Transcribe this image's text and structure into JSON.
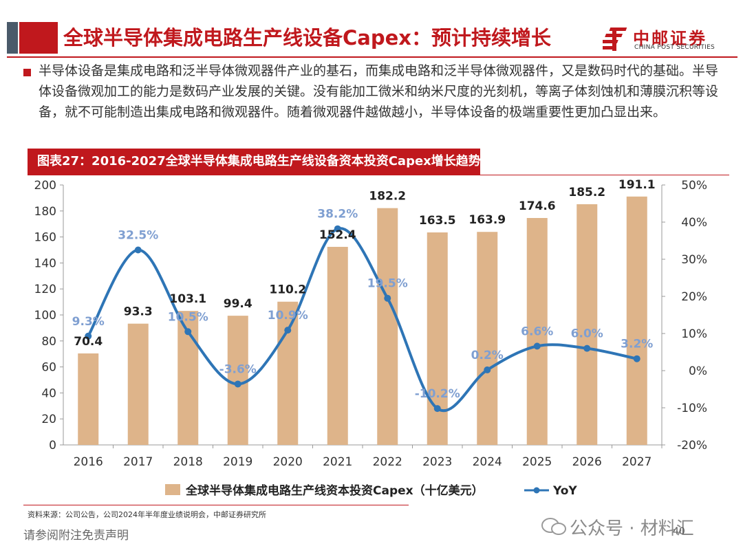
{
  "header": {
    "title": "全球半导体集成电路生产线设备Capex：预计持续增长",
    "logo_cn": "中邮证券",
    "logo_en": "CHINA POST SECURITIES"
  },
  "intro_text": "半导体设备是集成电路和泛半导体微观器件产业的基石，而集成电路和泛半导体微观器件，又是数码时代的基础。半导体设备微观加工的能力是数码产业发展的关键。没有能加工微米和纳米尺度的光刻机，等离子体刻蚀机和薄膜沉积等设备，就不可能制造出集成电路和微观器件。随着微观器件越做越小，半导体设备的极端重要性更加凸显出来。",
  "figure_title": "图表27：2016-2027全球半导体集成电路生产线设备资本投资Capex增长趋势",
  "chart_data": {
    "type": "bar",
    "categories": [
      "2016",
      "2017",
      "2018",
      "2019",
      "2020",
      "2021",
      "2022",
      "2023",
      "2024",
      "2025",
      "2026",
      "2027"
    ],
    "series": [
      {
        "name": "全球半导体集成电路生产线资本投资Capex（十亿美元）",
        "type": "bar",
        "axis": "left",
        "values": [
          70.4,
          93.3,
          103.1,
          99.4,
          110.2,
          152.4,
          182.2,
          163.5,
          163.9,
          174.6,
          185.2,
          191.1
        ],
        "labels": [
          "70.4",
          "93.3",
          "103.1",
          "99.4",
          "110.2",
          "152.4",
          "182.2",
          "163.5",
          "163.9",
          "174.6",
          "185.2",
          "191.1"
        ],
        "color": "#deb48a"
      },
      {
        "name": "YoY",
        "type": "line",
        "axis": "right",
        "values": [
          9.3,
          32.5,
          10.5,
          -3.6,
          10.9,
          38.2,
          19.5,
          -10.2,
          0.2,
          6.6,
          6.0,
          3.2
        ],
        "labels": [
          "9.3%",
          "32.5%",
          "10.5%",
          "-3.6%",
          "10.9%",
          "38.2%",
          "19.5%",
          "-10.2%",
          "0.2%",
          "6.6%",
          "6.0%",
          "3.2%"
        ],
        "color": "#2e75b6",
        "label_color": "#7f9fd1"
      }
    ],
    "ylim_left": [
      0,
      200
    ],
    "yticks_left": [
      "0",
      "20",
      "40",
      "60",
      "80",
      "100",
      "120",
      "140",
      "160",
      "180",
      "200"
    ],
    "ylim_right": [
      -20,
      50
    ],
    "yticks_right": [
      "-20%",
      "-10%",
      "0%",
      "10%",
      "20%",
      "30%",
      "40%",
      "50%"
    ],
    "grid": false,
    "legend_position": "bottom"
  },
  "source_text": "资料来源：公司公告，公司2024年半年度业绩说明会，中邮证券研究所",
  "footer_note": "请参阅附注免责声明",
  "watermark": "公众号 · 材料汇",
  "page_number": "40"
}
